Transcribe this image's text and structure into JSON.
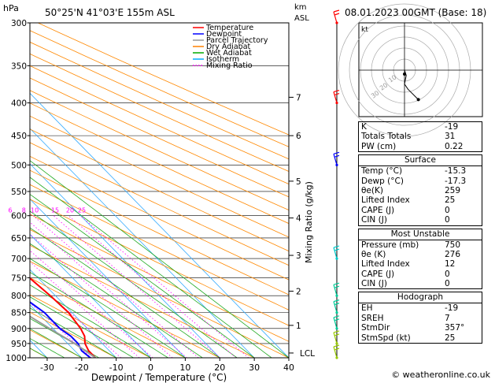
{
  "header": {
    "hpa_label": "hPa",
    "location": "50°25'N 41°03'E 155m ASL",
    "km_label": "km",
    "asl_label": "ASL",
    "datetime": "08.01.2023 00GMT (Base: 18)"
  },
  "legend": [
    {
      "name": "Temperature",
      "color": "#ff0000",
      "style": "solid"
    },
    {
      "name": "Dewpoint",
      "color": "#0000ff",
      "style": "solid"
    },
    {
      "name": "Parcel Trajectory",
      "color": "#999999",
      "style": "solid"
    },
    {
      "name": "Dry Adiabat",
      "color": "#ff8000",
      "style": "solid"
    },
    {
      "name": "Wet Adiabat",
      "color": "#00aa00",
      "style": "solid"
    },
    {
      "name": "Isotherm",
      "color": "#00aaff",
      "style": "solid"
    },
    {
      "name": "Mixing Ratio",
      "color": "#ff00ff",
      "style": "dotted"
    }
  ],
  "chart_data": {
    "type": "line",
    "xlabel": "Dewpoint / Temperature (°C)",
    "ylabel": "",
    "xlim": [
      -35,
      40
    ],
    "ylim": [
      1000,
      300
    ],
    "y_scale": "log",
    "x_ticks": [
      "-30",
      "-20",
      "-10",
      "0",
      "10",
      "20",
      "30",
      "40"
    ],
    "pressure_levels": [
      "300",
      "350",
      "400",
      "450",
      "500",
      "550",
      "600",
      "650",
      "700",
      "750",
      "800",
      "850",
      "900",
      "950",
      "1000"
    ],
    "km_ticks": [
      {
        "km": "7",
        "p": 392
      },
      {
        "km": "6",
        "p": 450
      },
      {
        "km": "5",
        "p": 530
      },
      {
        "km": "4",
        "p": 605
      },
      {
        "km": "3",
        "p": 692
      },
      {
        "km": "2",
        "p": 787
      },
      {
        "km": "1",
        "p": 890
      }
    ],
    "lcl": {
      "label": "LCL",
      "p": 983
    },
    "mixing_ratio_label": "Mixing Ratio (g/kg)",
    "mixing_ratio_labels": [
      "1",
      "2",
      "3",
      "4",
      "6",
      "8",
      "10",
      "15",
      "20",
      "25"
    ],
    "series": [
      {
        "name": "Temperature",
        "color": "#ff0000",
        "points": [
          [
            1000,
            -16
          ],
          [
            975,
            -16
          ],
          [
            950,
            -15
          ],
          [
            925,
            -13
          ],
          [
            900,
            -12
          ],
          [
            850,
            -11
          ],
          [
            800,
            -11.5
          ],
          [
            750,
            -12.5
          ],
          [
            700,
            -15
          ],
          [
            650,
            -18
          ],
          [
            600,
            -22
          ],
          [
            550,
            -26
          ],
          [
            500,
            -31
          ],
          [
            450,
            -37
          ],
          [
            400,
            -44
          ],
          [
            350,
            -51
          ],
          [
            300,
            -59
          ]
        ]
      },
      {
        "name": "Dewpoint",
        "color": "#0000ff",
        "points": [
          [
            1000,
            -17.5
          ],
          [
            975,
            -18
          ],
          [
            950,
            -17
          ],
          [
            925,
            -17
          ],
          [
            900,
            -18
          ],
          [
            850,
            -18
          ],
          [
            800,
            -20
          ],
          [
            750,
            -24
          ],
          [
            700,
            -35
          ],
          [
            650,
            -39
          ],
          [
            600,
            -43
          ],
          [
            550,
            -46
          ],
          [
            500,
            -48
          ],
          [
            450,
            -53
          ],
          [
            400,
            -57
          ],
          [
            350,
            -56
          ],
          [
            300,
            -63
          ]
        ]
      },
      {
        "name": "Parcel Trajectory",
        "color": "#999999",
        "points": [
          [
            1000,
            -16
          ],
          [
            950,
            -18
          ],
          [
            900,
            -21
          ],
          [
            850,
            -24
          ],
          [
            800,
            -27
          ],
          [
            750,
            -31
          ],
          [
            700,
            -34
          ],
          [
            650,
            -38
          ],
          [
            600,
            -41
          ],
          [
            550,
            -45
          ],
          [
            500,
            -50
          ]
        ]
      }
    ],
    "wind_barbs": [
      {
        "p": 300,
        "color": "#ff0000"
      },
      {
        "p": 400,
        "color": "#ff0000"
      },
      {
        "p": 500,
        "color": "#0000ff"
      },
      {
        "p": 700,
        "color": "#00cccc"
      },
      {
        "p": 800,
        "color": "#00cc99"
      },
      {
        "p": 850,
        "color": "#00cc99"
      },
      {
        "p": 900,
        "color": "#00cc99"
      },
      {
        "p": 950,
        "color": "#99cc00"
      },
      {
        "p": 1000,
        "color": "#99cc00"
      }
    ]
  },
  "hodograph": {
    "label": "kt",
    "ring_labels": [
      "10",
      "20",
      "30"
    ],
    "trace": [
      [
        0,
        0
      ],
      [
        1,
        -3
      ],
      [
        0,
        -8
      ],
      [
        2,
        -11
      ],
      [
        8,
        -17
      ]
    ]
  },
  "stats": {
    "indices": [
      {
        "label": "K",
        "value": "-19"
      },
      {
        "label": "Totals Totals",
        "value": "31"
      },
      {
        "label": "PW (cm)",
        "value": "0.22"
      }
    ],
    "surface": {
      "title": "Surface",
      "rows": [
        {
          "label": "Temp (°C)",
          "value": "-15.3"
        },
        {
          "label": "Dewp (°C)",
          "value": "-17.3"
        },
        {
          "label": "θe(K)",
          "value": "259"
        },
        {
          "label": "Lifted Index",
          "value": "25"
        },
        {
          "label": "CAPE (J)",
          "value": "0"
        },
        {
          "label": "CIN (J)",
          "value": "0"
        }
      ]
    },
    "most_unstable": {
      "title": "Most Unstable",
      "rows": [
        {
          "label": "Pressure (mb)",
          "value": "750"
        },
        {
          "label": "θe (K)",
          "value": "276"
        },
        {
          "label": "Lifted Index",
          "value": "12"
        },
        {
          "label": "CAPE (J)",
          "value": "0"
        },
        {
          "label": "CIN (J)",
          "value": "0"
        }
      ]
    },
    "hodograph_stats": {
      "title": "Hodograph",
      "rows": [
        {
          "label": "EH",
          "value": "-19"
        },
        {
          "label": "SREH",
          "value": "7"
        },
        {
          "label": "StmDir",
          "value": "357°"
        },
        {
          "label": "StmSpd (kt)",
          "value": "25"
        }
      ]
    }
  },
  "footer": "© weatheronline.co.uk"
}
